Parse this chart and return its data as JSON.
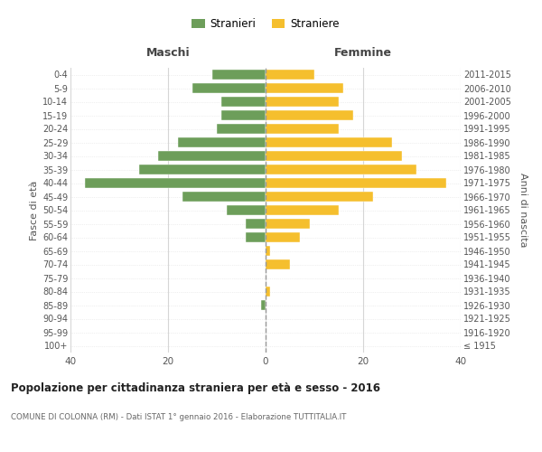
{
  "age_groups": [
    "100+",
    "95-99",
    "90-94",
    "85-89",
    "80-84",
    "75-79",
    "70-74",
    "65-69",
    "60-64",
    "55-59",
    "50-54",
    "45-49",
    "40-44",
    "35-39",
    "30-34",
    "25-29",
    "20-24",
    "15-19",
    "10-14",
    "5-9",
    "0-4"
  ],
  "birth_years": [
    "≤ 1915",
    "1916-1920",
    "1921-1925",
    "1926-1930",
    "1931-1935",
    "1936-1940",
    "1941-1945",
    "1946-1950",
    "1951-1955",
    "1956-1960",
    "1961-1965",
    "1966-1970",
    "1971-1975",
    "1976-1980",
    "1981-1985",
    "1986-1990",
    "1991-1995",
    "1996-2000",
    "2001-2005",
    "2006-2010",
    "2011-2015"
  ],
  "maschi": [
    0,
    0,
    0,
    1,
    0,
    0,
    0,
    0,
    4,
    4,
    8,
    17,
    37,
    26,
    22,
    18,
    10,
    9,
    9,
    15,
    11
  ],
  "femmine": [
    0,
    0,
    0,
    0,
    1,
    0,
    5,
    1,
    7,
    9,
    15,
    22,
    37,
    31,
    28,
    26,
    15,
    18,
    15,
    16,
    10
  ],
  "color_maschi": "#6d9e5a",
  "color_femmine": "#f5bf2e",
  "title": "Popolazione per cittadinanza straniera per età e sesso - 2016",
  "subtitle": "COMUNE DI COLONNA (RM) - Dati ISTAT 1° gennaio 2016 - Elaborazione TUTTITALIA.IT",
  "xlabel_left": "Maschi",
  "xlabel_right": "Femmine",
  "ylabel_left": "Fasce di età",
  "ylabel_right": "Anni di nascita",
  "legend_maschi": "Stranieri",
  "legend_femmine": "Straniere",
  "xlim": 40,
  "background_color": "#ffffff",
  "grid_color": "#cccccc"
}
